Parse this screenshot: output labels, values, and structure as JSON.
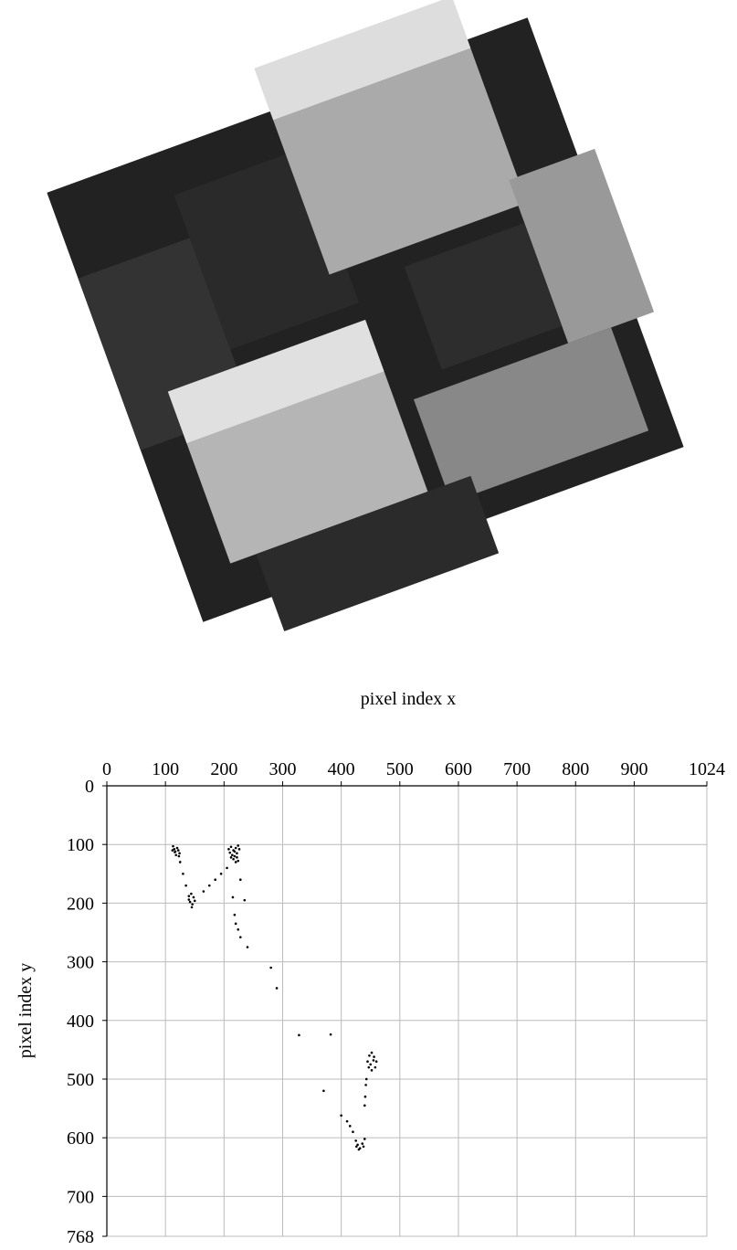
{
  "chart_data": {
    "type": "scatter",
    "x_label": "pixel index x",
    "y_label": "pixel index y",
    "xlim": [
      0,
      1024
    ],
    "ylim": [
      768,
      0
    ],
    "xticks": [
      0,
      100,
      200,
      300,
      400,
      500,
      600,
      700,
      800,
      900,
      1024
    ],
    "yticks": [
      0,
      100,
      200,
      300,
      400,
      500,
      600,
      700,
      768
    ],
    "grid": true,
    "x_axis_position": "top",
    "series": [
      {
        "color": "#000000",
        "x": [
          113,
          115,
          117,
          120,
          122,
          124,
          123,
          118,
          116,
          112,
          208,
          212,
          216,
          220,
          224,
          226,
          222,
          218,
          214,
          210,
          216,
          220,
          224,
          218,
          212,
          222,
          205,
          195,
          185,
          175,
          165,
          140,
          144,
          148,
          150,
          146,
          142,
          140,
          145,
          125,
          130,
          135,
          215,
          218,
          220,
          224,
          228,
          235,
          228,
          240,
          280,
          290,
          328,
          382,
          370,
          400,
          410,
          415,
          420,
          440,
          441,
          442,
          443,
          445,
          448,
          452,
          456,
          460,
          458,
          452,
          447,
          450,
          455,
          425,
          428,
          432,
          436,
          440,
          438,
          430,
          426
        ],
        "y": [
          103,
          108,
          112,
          106,
          110,
          115,
          120,
          118,
          113,
          110,
          108,
          104,
          110,
          106,
          102,
          108,
          115,
          120,
          118,
          114,
          125,
          130,
          128,
          112,
          122,
          122,
          140,
          150,
          160,
          170,
          180,
          188,
          184,
          190,
          196,
          202,
          198,
          194,
          207,
          130,
          150,
          170,
          190,
          220,
          235,
          245,
          258,
          195,
          160,
          275,
          310,
          345,
          425,
          424,
          520,
          562,
          572,
          580,
          590,
          545,
          530,
          510,
          500,
          470,
          460,
          455,
          462,
          470,
          480,
          485,
          480,
          475,
          468,
          605,
          612,
          618,
          610,
          602,
          615,
          620,
          615
        ]
      }
    ]
  }
}
